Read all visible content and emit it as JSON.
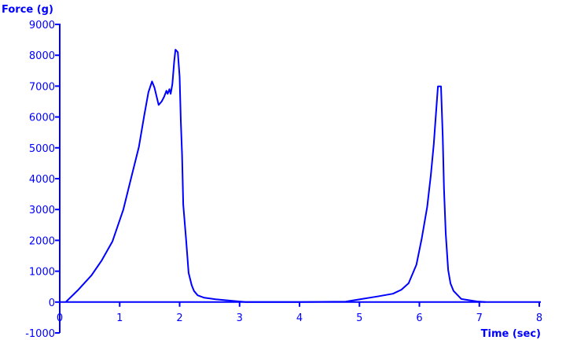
{
  "chart_data": {
    "type": "line",
    "title": "",
    "xlabel": "Time (sec)",
    "ylabel": "Force (g)",
    "xlim": [
      0,
      8
    ],
    "ylim": [
      -1000,
      9000
    ],
    "x_ticks": [
      "0",
      "1",
      "2",
      "3",
      "4",
      "5",
      "6",
      "7",
      "8"
    ],
    "y_ticks": [
      "-1000",
      "0",
      "1000",
      "2000",
      "3000",
      "4000",
      "5000",
      "6000",
      "7000",
      "8000",
      "9000"
    ],
    "grid": false,
    "color": "#0000ff",
    "series": [
      {
        "x": [
          0.1,
          0.3,
          0.53,
          0.7,
          0.88,
          1.06,
          1.19,
          1.32,
          1.41,
          1.48,
          1.54,
          1.58,
          1.65,
          1.7,
          1.74,
          1.78,
          1.8,
          1.83,
          1.85,
          1.88,
          1.91,
          1.93,
          1.97,
          2.0,
          2.02,
          2.04,
          2.06,
          2.11,
          2.15,
          2.2,
          2.24,
          2.3,
          2.41,
          2.6,
          2.76,
          3.1,
          4.0,
          4.77,
          5.04,
          5.3,
          5.56,
          5.7,
          5.82,
          5.95,
          6.04,
          6.13,
          6.19,
          6.24,
          6.28,
          6.31,
          6.36,
          6.39,
          6.41,
          6.44,
          6.48,
          6.52,
          6.57,
          6.7,
          6.96,
          7.1
        ],
        "y": [
          0,
          380,
          867,
          1350,
          1970,
          2990,
          4010,
          5030,
          6050,
          6800,
          7150,
          6950,
          6390,
          6500,
          6650,
          6850,
          6750,
          6900,
          6750,
          7070,
          7800,
          8180,
          8100,
          7300,
          5880,
          4780,
          3160,
          1970,
          950,
          550,
          360,
          220,
          140,
          90,
          60,
          0,
          0,
          15,
          100,
          180,
          270,
          400,
          610,
          1210,
          2060,
          3080,
          4100,
          5120,
          6220,
          6990,
          6990,
          5370,
          3670,
          2230,
          1040,
          600,
          360,
          100,
          20,
          0
        ]
      }
    ]
  }
}
